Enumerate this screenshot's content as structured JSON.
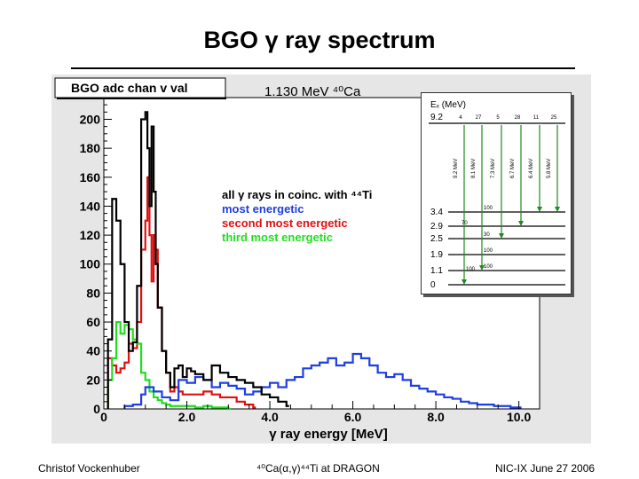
{
  "slide": {
    "title": "BGO γ ray spectrum",
    "annotation": "1.130 MeV ⁴⁰Ca",
    "footer_left": "Christof Vockenhuber",
    "footer_center": "⁴⁰Ca(α,γ)⁴⁴Ti at DRAGON",
    "footer_right": "NIC-IX June 27 2006"
  },
  "chart_data": {
    "type": "histogram",
    "title": "BGO adc chan v val",
    "xlabel": "γ ray energy [MeV]",
    "ylabel": "",
    "xlim": [
      0,
      10.5
    ],
    "ylim": [
      0,
      215
    ],
    "x_ticks": [
      0,
      2,
      4,
      6,
      8,
      10
    ],
    "x_tick_labels": [
      "0",
      "2.0",
      "4.0",
      "6.0",
      "8.0",
      "10.0"
    ],
    "y_ticks": [
      0,
      20,
      40,
      60,
      80,
      100,
      120,
      140,
      160,
      180,
      200
    ],
    "y_tick_labels": [
      "0",
      "20",
      "40",
      "60",
      "80",
      "100",
      "120",
      "140",
      "160",
      "180",
      "200"
    ],
    "legend": [
      {
        "label": "all γ rays in coinc. with ⁴⁴Ti",
        "color": "#000000"
      },
      {
        "label": "most energetic",
        "color": "#1f3fe0"
      },
      {
        "label": "second most energetic",
        "color": "#e01010"
      },
      {
        "label": "third most energetic",
        "color": "#22dd22"
      }
    ],
    "series": [
      {
        "name": "all γ rays in coinc. with ⁴⁴Ti",
        "color": "#000000",
        "x": [
          0.1,
          0.2,
          0.3,
          0.4,
          0.5,
          0.6,
          0.7,
          0.8,
          0.9,
          1.0,
          1.05,
          1.1,
          1.15,
          1.2,
          1.25,
          1.3,
          1.4,
          1.5,
          1.6,
          1.7,
          1.8,
          1.9,
          2.0,
          2.1,
          2.2,
          2.4,
          2.6,
          2.8,
          3.0,
          3.2,
          3.4,
          3.6,
          3.8,
          4.0,
          4.2,
          4.4
        ],
        "y": [
          48,
          145,
          130,
          100,
          60,
          40,
          46,
          85,
          200,
          205,
          180,
          140,
          195,
          150,
          100,
          70,
          40,
          25,
          15,
          28,
          30,
          22,
          28,
          26,
          24,
          20,
          30,
          25,
          22,
          20,
          18,
          15,
          10,
          8,
          5,
          2
        ]
      },
      {
        "name": "most energetic",
        "color": "#1f3fe0",
        "x": [
          0.5,
          0.7,
          0.9,
          1.0,
          1.2,
          1.4,
          1.6,
          1.8,
          2.0,
          2.2,
          2.4,
          2.6,
          2.8,
          3.0,
          3.2,
          3.4,
          3.6,
          3.8,
          4.0,
          4.2,
          4.4,
          4.6,
          4.8,
          5.0,
          5.2,
          5.4,
          5.6,
          5.8,
          6.0,
          6.2,
          6.4,
          6.6,
          6.8,
          7.0,
          7.2,
          7.4,
          7.6,
          7.8,
          8.0,
          8.2,
          8.4,
          8.6,
          8.8,
          9.0,
          9.2,
          9.4,
          9.6,
          9.8,
          10.0
        ],
        "y": [
          2,
          3,
          10,
          15,
          12,
          8,
          6,
          20,
          18,
          22,
          20,
          15,
          18,
          16,
          14,
          10,
          12,
          15,
          18,
          15,
          20,
          22,
          28,
          30,
          32,
          35,
          30,
          32,
          38,
          35,
          30,
          25,
          22,
          24,
          20,
          16,
          14,
          12,
          10,
          8,
          7,
          5,
          4,
          3,
          3,
          2,
          2,
          1,
          1
        ]
      },
      {
        "name": "second most energetic",
        "color": "#e01010",
        "x": [
          0.1,
          0.2,
          0.3,
          0.4,
          0.5,
          0.6,
          0.7,
          0.8,
          0.9,
          1.0,
          1.05,
          1.1,
          1.15,
          1.2,
          1.25,
          1.3,
          1.4,
          1.5,
          1.6,
          1.7,
          1.8,
          1.9,
          2.0,
          2.2,
          2.4,
          2.6,
          2.8,
          3.0,
          3.2,
          3.4,
          3.6
        ],
        "y": [
          35,
          30,
          25,
          28,
          32,
          45,
          42,
          60,
          110,
          130,
          160,
          120,
          88,
          120,
          110,
          70,
          40,
          25,
          12,
          15,
          12,
          10,
          10,
          10,
          12,
          10,
          8,
          8,
          5,
          3,
          1
        ]
      },
      {
        "name": "third most energetic",
        "color": "#22dd22",
        "x": [
          0.1,
          0.2,
          0.3,
          0.4,
          0.5,
          0.6,
          0.7,
          0.8,
          0.9,
          1.0,
          1.1,
          1.2,
          1.3,
          1.4,
          1.5,
          1.6,
          1.8,
          2.0,
          2.2,
          2.4,
          2.6,
          2.8,
          3.0
        ],
        "y": [
          20,
          35,
          60,
          52,
          58,
          55,
          48,
          45,
          25,
          20,
          12,
          8,
          6,
          4,
          3,
          2,
          2,
          2,
          1,
          2,
          1,
          1,
          0
        ]
      }
    ]
  },
  "inset": {
    "title": "Eₓ (MeV)",
    "top_level": "9.2",
    "levels": [
      "3.4",
      "2.9",
      "2.5",
      "1.9",
      "1.1",
      "0"
    ],
    "top_branchings": [
      "4",
      "27",
      "5",
      "28",
      "11",
      "25"
    ],
    "transitions": [
      "9.2 MeV",
      "8.1 MeV",
      "7.3 MeV",
      "6.7 MeV",
      "6.4 MeV",
      "5.8 MeV"
    ],
    "level_values": [
      "100",
      "70",
      "30",
      "100",
      "100",
      "100"
    ]
  }
}
